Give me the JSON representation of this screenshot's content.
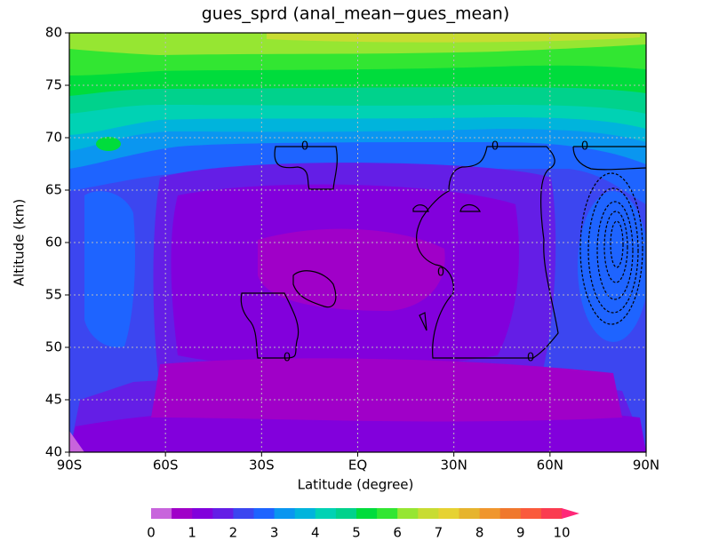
{
  "chart_data": {
    "type": "contour",
    "title": "gues_sprd (anal_mean−gues_mean)",
    "x_label": "Latitude (degree)",
    "y_label": "Altitude (km)",
    "xlim": [
      -90,
      90
    ],
    "ylim": [
      40,
      80
    ],
    "xticks": [
      {
        "value": -90,
        "label": "90S"
      },
      {
        "value": -60,
        "label": "60S"
      },
      {
        "value": -30,
        "label": "30S"
      },
      {
        "value": 0,
        "label": "EQ"
      },
      {
        "value": 30,
        "label": "30N"
      },
      {
        "value": 60,
        "label": "60N"
      },
      {
        "value": 90,
        "label": "90N"
      }
    ],
    "yticks": [
      40,
      45,
      50,
      55,
      60,
      65,
      70,
      75,
      80
    ],
    "grid": true,
    "contour_labels": [
      "0",
      "0",
      "0",
      "0",
      "0",
      "0"
    ],
    "colorbar": {
      "ticks": [
        0,
        1,
        2,
        3,
        4,
        5,
        6,
        7,
        8,
        9,
        10
      ],
      "colors": [
        "#c864dc",
        "#a000c8",
        "#8200dc",
        "#641ee6",
        "#3c46f0",
        "#1e64ff",
        "#0a96f0",
        "#00b4dc",
        "#00d2b4",
        "#00d28c",
        "#00dc3c",
        "#32e632",
        "#96e632",
        "#c8dc32",
        "#e6d232",
        "#e6b42d",
        "#f0962d",
        "#f0782d",
        "#fa5a3c",
        "#fa3c50",
        "#ff2878"
      ]
    }
  }
}
